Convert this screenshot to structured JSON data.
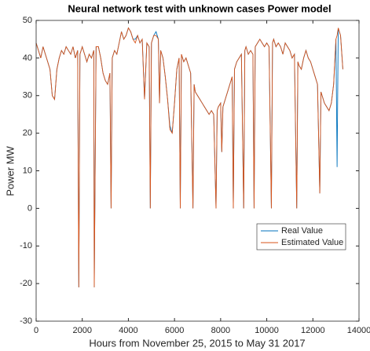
{
  "chart_data": {
    "type": "line",
    "title": "Neural network test with unknown cases Power model",
    "x_label": "Hours from November 25, 2015 to May 31 2017",
    "y_label": "Power MW",
    "x": [
      0,
      100,
      200,
      300,
      400,
      500,
      600,
      700,
      800,
      900,
      1000,
      1100,
      1200,
      1300,
      1400,
      1500,
      1600,
      1700,
      1800,
      1850,
      1900,
      2000,
      2100,
      2200,
      2300,
      2400,
      2500,
      2520,
      2600,
      2700,
      2800,
      2900,
      3000,
      3100,
      3200,
      3250,
      3300,
      3400,
      3500,
      3600,
      3700,
      3800,
      3900,
      4000,
      4100,
      4200,
      4300,
      4400,
      4500,
      4600,
      4700,
      4800,
      4900,
      4950,
      5000,
      5100,
      5200,
      5300,
      5350,
      5400,
      5500,
      5600,
      5700,
      5800,
      5900,
      6000,
      6100,
      6200,
      6250,
      6300,
      6400,
      6500,
      6600,
      6700,
      6800,
      6850,
      6900,
      7000,
      7100,
      7200,
      7300,
      7400,
      7500,
      7600,
      7700,
      7800,
      7850,
      7900,
      8000,
      8050,
      8100,
      8200,
      8300,
      8400,
      8500,
      8550,
      8600,
      8700,
      8800,
      8900,
      9000,
      9050,
      9100,
      9200,
      9300,
      9400,
      9450,
      9500,
      9600,
      9700,
      9800,
      9900,
      10000,
      10100,
      10200,
      10250,
      10300,
      10400,
      10500,
      10600,
      10700,
      10800,
      10900,
      11000,
      11100,
      11200,
      11300,
      11350,
      11400,
      11500,
      11600,
      11700,
      11800,
      11900,
      12000,
      12100,
      12200,
      12300,
      12350,
      12400,
      12500,
      12600,
      12700,
      12800,
      12900,
      13000,
      13050,
      13100,
      13200,
      13300
    ],
    "series": [
      {
        "name": "Real Value",
        "color": "#0072bd",
        "values": [
          44,
          42,
          40,
          43,
          41,
          39,
          37,
          30,
          29,
          37,
          40,
          42,
          41,
          43,
          42,
          41,
          43,
          40,
          42,
          -21,
          41,
          43,
          41,
          39,
          41,
          40,
          42,
          -21,
          43,
          43,
          40,
          36,
          34,
          33,
          36,
          0,
          40,
          42,
          41,
          44,
          47,
          45,
          46,
          48,
          47,
          45,
          45,
          46,
          44,
          45,
          29,
          44,
          43,
          0,
          44,
          46,
          47,
          45,
          28,
          42,
          40,
          35,
          29,
          22,
          20,
          28,
          37,
          40,
          0,
          41,
          39,
          40,
          38,
          36,
          0,
          33,
          31,
          30,
          29,
          28,
          27,
          26,
          25,
          26,
          25,
          0,
          26,
          27,
          28,
          15,
          27,
          29,
          31,
          33,
          35,
          0,
          37,
          39,
          40,
          41,
          0,
          42,
          43,
          41,
          42,
          41,
          0,
          43,
          44,
          45,
          44,
          43,
          44,
          43,
          0,
          44,
          45,
          43,
          44,
          43,
          41,
          44,
          43,
          42,
          40,
          41,
          0,
          39,
          38,
          37,
          40,
          42,
          40,
          39,
          37,
          35,
          33,
          4,
          31,
          30,
          28,
          27,
          26,
          28,
          33,
          45,
          11,
          48,
          46,
          37
        ]
      },
      {
        "name": "Estimated Value",
        "color": "#d95319",
        "values": [
          44,
          42,
          40,
          43,
          41,
          39,
          37,
          30,
          29,
          37,
          40,
          42,
          41,
          43,
          42,
          41,
          43,
          40,
          42,
          -21,
          41,
          43,
          41,
          39,
          41,
          40,
          42,
          -21,
          43,
          43,
          40,
          36,
          34,
          33,
          36,
          0,
          40,
          42,
          41,
          44,
          47,
          45,
          46,
          48,
          47,
          45,
          44,
          46,
          44,
          45,
          29,
          44,
          43,
          0,
          44,
          46,
          46,
          45,
          28,
          42,
          40,
          35,
          29,
          21,
          20,
          28,
          37,
          40,
          0,
          41,
          39,
          40,
          38,
          36,
          0,
          33,
          31,
          30,
          29,
          28,
          27,
          26,
          25,
          26,
          25,
          0,
          26,
          27,
          28,
          15,
          27,
          29,
          31,
          33,
          35,
          0,
          37,
          39,
          40,
          41,
          0,
          42,
          43,
          41,
          42,
          41,
          0,
          43,
          44,
          45,
          44,
          43,
          44,
          43,
          0,
          44,
          45,
          43,
          44,
          43,
          41,
          44,
          43,
          42,
          40,
          41,
          0,
          39,
          38,
          37,
          40,
          42,
          40,
          39,
          37,
          35,
          33,
          4,
          31,
          30,
          28,
          27,
          26,
          28,
          33,
          45,
          46,
          48,
          46,
          37
        ]
      }
    ],
    "xlim": [
      0,
      14000
    ],
    "xticks": [
      0,
      2000,
      4000,
      6000,
      8000,
      10000,
      12000,
      14000
    ],
    "ylim": [
      -30,
      50
    ],
    "yticks": [
      -30,
      -20,
      -10,
      0,
      10,
      20,
      30,
      40,
      50
    ],
    "legend": "southeast"
  }
}
